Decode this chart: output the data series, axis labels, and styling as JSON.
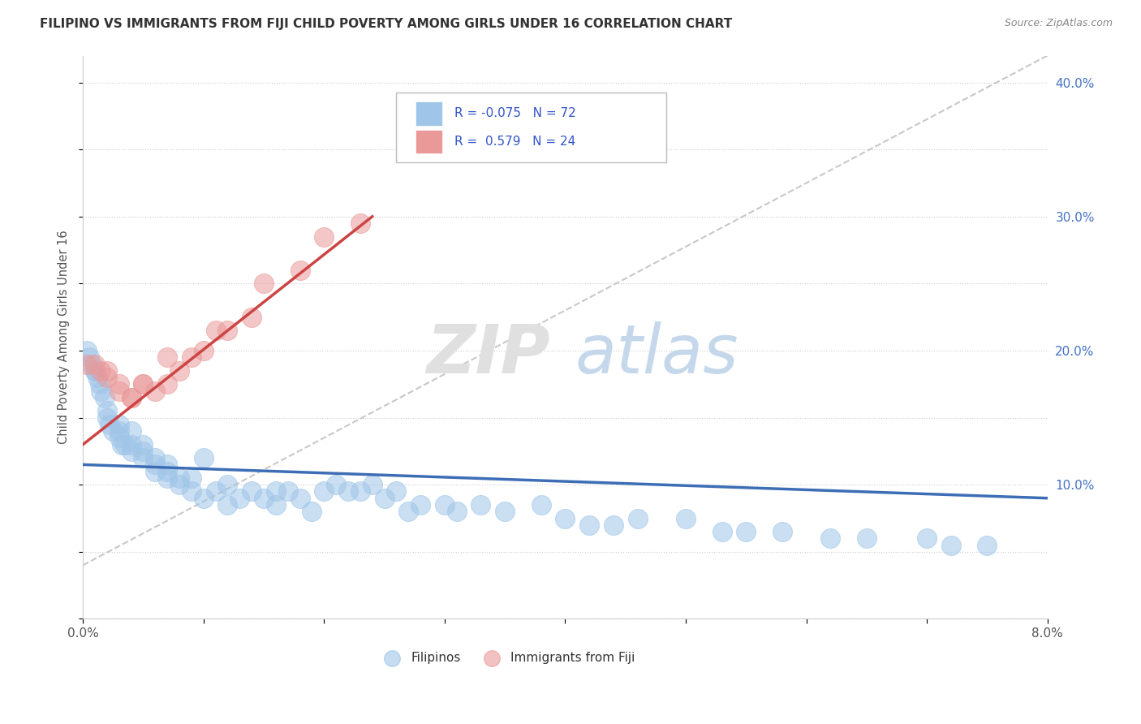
{
  "title": "FILIPINO VS IMMIGRANTS FROM FIJI CHILD POVERTY AMONG GIRLS UNDER 16 CORRELATION CHART",
  "source": "Source: ZipAtlas.com",
  "ylabel": "Child Poverty Among Girls Under 16",
  "xlim": [
    0.0,
    0.08
  ],
  "ylim": [
    0.0,
    0.42
  ],
  "y_ticks": [
    0.0,
    0.1,
    0.2,
    0.3,
    0.4
  ],
  "y_tick_labels": [
    "",
    "10.0%",
    "20.0%",
    "30.0%",
    "40.0%"
  ],
  "grid_color": "#cccccc",
  "background_color": "#ffffff",
  "blue_color": "#9fc5e8",
  "pink_color": "#ea9999",
  "blue_line_color": "#3d6eb5",
  "pink_line_color": "#cc4444",
  "trend_line_gray": "#bbbbbb",
  "filipinos_x": [
    0.0003,
    0.0005,
    0.0007,
    0.001,
    0.001,
    0.0012,
    0.0014,
    0.0015,
    0.0018,
    0.002,
    0.002,
    0.0022,
    0.0025,
    0.003,
    0.003,
    0.003,
    0.0032,
    0.0035,
    0.004,
    0.004,
    0.004,
    0.005,
    0.005,
    0.005,
    0.006,
    0.006,
    0.006,
    0.007,
    0.007,
    0.007,
    0.008,
    0.008,
    0.009,
    0.009,
    0.01,
    0.01,
    0.011,
    0.012,
    0.012,
    0.013,
    0.014,
    0.015,
    0.016,
    0.016,
    0.017,
    0.018,
    0.019,
    0.02,
    0.021,
    0.022,
    0.023,
    0.024,
    0.025,
    0.026,
    0.027,
    0.028,
    0.03,
    0.031,
    0.033,
    0.035,
    0.038,
    0.04,
    0.042,
    0.044,
    0.046,
    0.05,
    0.053,
    0.055,
    0.058,
    0.062,
    0.065,
    0.07,
    0.072,
    0.075
  ],
  "filipinos_y": [
    0.2,
    0.195,
    0.19,
    0.185,
    0.185,
    0.18,
    0.175,
    0.17,
    0.165,
    0.155,
    0.15,
    0.145,
    0.14,
    0.145,
    0.14,
    0.135,
    0.13,
    0.13,
    0.14,
    0.13,
    0.125,
    0.13,
    0.125,
    0.12,
    0.12,
    0.115,
    0.11,
    0.115,
    0.11,
    0.105,
    0.105,
    0.1,
    0.105,
    0.095,
    0.12,
    0.09,
    0.095,
    0.1,
    0.085,
    0.09,
    0.095,
    0.09,
    0.095,
    0.085,
    0.095,
    0.09,
    0.08,
    0.095,
    0.1,
    0.095,
    0.095,
    0.1,
    0.09,
    0.095,
    0.08,
    0.085,
    0.085,
    0.08,
    0.085,
    0.08,
    0.085,
    0.075,
    0.07,
    0.07,
    0.075,
    0.075,
    0.065,
    0.065,
    0.065,
    0.06,
    0.06,
    0.06,
    0.055,
    0.055
  ],
  "fiji_x": [
    0.0003,
    0.001,
    0.0015,
    0.002,
    0.002,
    0.003,
    0.003,
    0.004,
    0.004,
    0.005,
    0.005,
    0.006,
    0.007,
    0.007,
    0.008,
    0.009,
    0.01,
    0.011,
    0.012,
    0.014,
    0.015,
    0.018,
    0.02,
    0.023
  ],
  "fiji_y": [
    0.19,
    0.19,
    0.185,
    0.185,
    0.18,
    0.175,
    0.17,
    0.165,
    0.165,
    0.175,
    0.175,
    0.17,
    0.175,
    0.195,
    0.185,
    0.195,
    0.2,
    0.215,
    0.215,
    0.225,
    0.25,
    0.26,
    0.285,
    0.295
  ],
  "blue_trend_x0": 0.0,
  "blue_trend_y0": 0.115,
  "blue_trend_x1": 0.08,
  "blue_trend_y1": 0.09,
  "pink_trend_x0": 0.0,
  "pink_trend_y0": 0.13,
  "pink_trend_x1": 0.024,
  "pink_trend_y1": 0.3,
  "gray_trend_x0": 0.0,
  "gray_trend_y0": 0.04,
  "gray_trend_x1": 0.08,
  "gray_trend_y1": 0.42
}
